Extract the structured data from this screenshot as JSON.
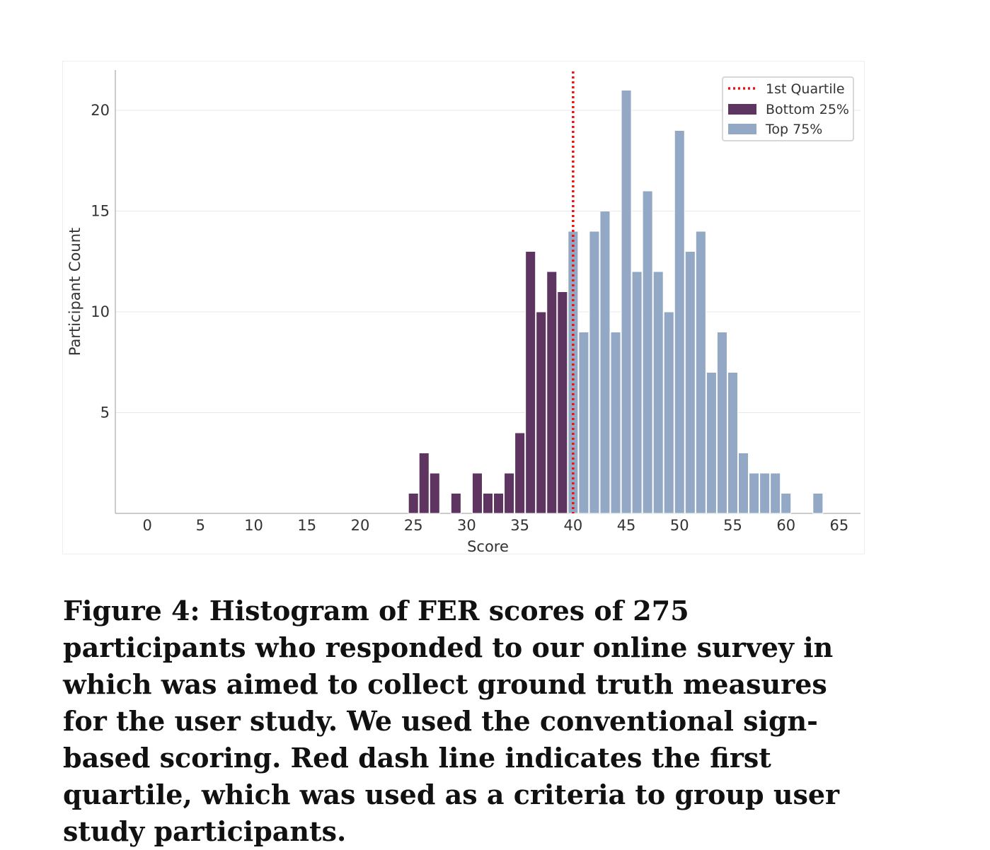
{
  "chart_data": {
    "type": "bar",
    "xlabel": "Score",
    "ylabel": "Participant Count",
    "xlim": [
      -3,
      67
    ],
    "ylim": [
      0,
      22
    ],
    "xticks": [
      0,
      5,
      10,
      15,
      20,
      25,
      30,
      35,
      40,
      45,
      50,
      55,
      60,
      65
    ],
    "yticks": [
      5,
      10,
      15,
      20
    ],
    "grid": "horizontal",
    "legend_position": "top-right",
    "quartile": {
      "name": "1st Quartile",
      "x": 40,
      "color": "#ee1111"
    },
    "series": [
      {
        "name": "Bottom 25%",
        "color": "#5e3560",
        "x": [
          26,
          27,
          28,
          30,
          32,
          33,
          34,
          35,
          36,
          37,
          38,
          39,
          40
        ],
        "values": [
          1,
          3,
          2,
          1,
          2,
          1,
          1,
          2,
          4,
          13,
          10,
          12,
          11
        ]
      },
      {
        "name": "Top 75%",
        "color": "#93a8c4",
        "x": [
          41,
          42,
          43,
          44,
          45,
          46,
          47,
          48,
          49,
          50,
          51,
          52,
          53,
          54,
          55,
          56,
          57,
          58,
          59,
          60,
          61,
          64
        ],
        "values": [
          14,
          9,
          14,
          15,
          9,
          21,
          12,
          16,
          12,
          10,
          19,
          13,
          14,
          7,
          9,
          7,
          3,
          2,
          2,
          2,
          1,
          1
        ]
      }
    ]
  },
  "caption": "Figure 4: Histogram of FER scores of 275 participants who responded to our online survey in which was aimed to collect ground truth measures for the user study. We used the conventional sign-based scoring. Red dash line indicates the first quartile, which was used as a criteria to group user study participants."
}
